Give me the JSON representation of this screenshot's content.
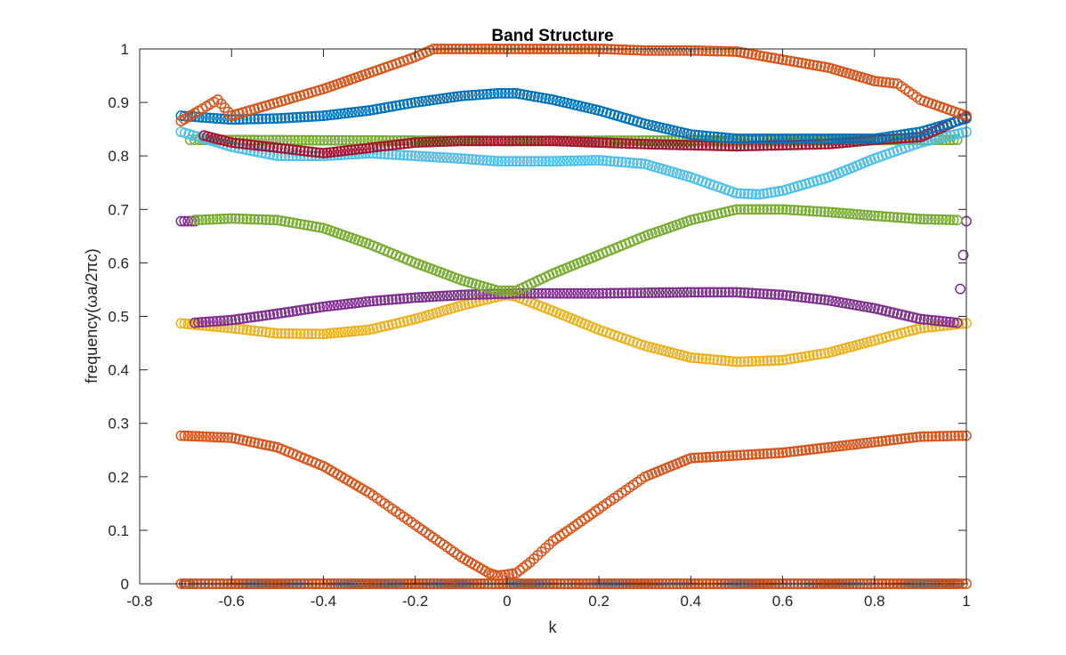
{
  "chart_data": {
    "type": "scatter",
    "title": "Band Structure",
    "xlabel": "k",
    "ylabel": "frequency(ωa/2πc)",
    "xlim": [
      -0.8,
      1
    ],
    "ylim": [
      0,
      1
    ],
    "xticks": [
      "-0.8",
      "-0.6",
      "-0.4",
      "-0.2",
      "0",
      "0.2",
      "0.4",
      "0.6",
      "0.8",
      "1"
    ],
    "yticks": [
      "0",
      "0.1",
      "0.2",
      "0.3",
      "0.4",
      "0.5",
      "0.6",
      "0.7",
      "0.8",
      "0.9",
      "1"
    ],
    "grid": false,
    "legend": "none",
    "marker": "open-circle",
    "series": [
      {
        "color": "#0072BD",
        "points": [
          [
            -0.7,
            0
          ],
          [
            -0.6,
            0
          ],
          [
            -0.5,
            0
          ],
          [
            -0.4,
            0
          ],
          [
            -0.3,
            0
          ],
          [
            -0.2,
            0
          ],
          [
            -0.16,
            0
          ],
          [
            0.22,
            0
          ],
          [
            0.3,
            0
          ],
          [
            0.4,
            0
          ],
          [
            0.5,
            0
          ],
          [
            0.6,
            0
          ],
          [
            0.7,
            0
          ],
          [
            0.8,
            0
          ],
          [
            0.9,
            0
          ],
          [
            0.98,
            0
          ]
        ]
      },
      {
        "color": "#D95319",
        "points": [
          [
            -0.71,
            0
          ],
          [
            -0.69,
            0
          ],
          [
            -0.15,
            0
          ],
          [
            -0.1,
            0
          ],
          [
            -0.05,
            0
          ],
          [
            0,
            0
          ],
          [
            0.05,
            0
          ],
          [
            0.1,
            0
          ],
          [
            0.15,
            0
          ],
          [
            0.21,
            0
          ],
          [
            1,
            0
          ]
        ]
      },
      {
        "color": "#D95319",
        "points": [
          [
            -0.71,
            0.277
          ],
          [
            -0.6,
            0.273
          ],
          [
            -0.5,
            0.255
          ],
          [
            -0.4,
            0.22
          ],
          [
            -0.3,
            0.17
          ],
          [
            -0.2,
            0.11
          ],
          [
            -0.1,
            0.05
          ],
          [
            -0.04,
            0.02
          ],
          [
            -0.02,
            0.015
          ],
          [
            0.02,
            0.02
          ],
          [
            0.05,
            0.04
          ],
          [
            0.1,
            0.08
          ],
          [
            0.2,
            0.14
          ],
          [
            0.3,
            0.2
          ],
          [
            0.4,
            0.235
          ],
          [
            0.5,
            0.24
          ],
          [
            0.6,
            0.245
          ],
          [
            0.7,
            0.255
          ],
          [
            0.8,
            0.265
          ],
          [
            0.9,
            0.275
          ],
          [
            1,
            0.277
          ]
        ]
      },
      {
        "color": "#EDB120",
        "points": [
          [
            -0.71,
            0.487
          ],
          [
            -0.6,
            0.478
          ],
          [
            -0.5,
            0.468
          ],
          [
            -0.4,
            0.467
          ],
          [
            -0.3,
            0.475
          ],
          [
            -0.2,
            0.495
          ],
          [
            -0.1,
            0.52
          ],
          [
            -0.02,
            0.537
          ],
          [
            0,
            0.54
          ],
          [
            0.02,
            0.537
          ],
          [
            0.1,
            0.51
          ],
          [
            0.2,
            0.475
          ],
          [
            0.3,
            0.445
          ],
          [
            0.4,
            0.423
          ],
          [
            0.5,
            0.415
          ],
          [
            0.6,
            0.418
          ],
          [
            0.7,
            0.432
          ],
          [
            0.8,
            0.455
          ],
          [
            0.9,
            0.478
          ],
          [
            1,
            0.487
          ]
        ]
      },
      {
        "color": "#7E2F8E",
        "points": [
          [
            -0.71,
            0.678
          ],
          [
            -0.68,
            0.678
          ]
        ]
      },
      {
        "color": "#7E2F8E",
        "points": [
          [
            -0.68,
            0.488
          ],
          [
            -0.6,
            0.493
          ],
          [
            -0.5,
            0.505
          ],
          [
            -0.4,
            0.518
          ],
          [
            -0.3,
            0.528
          ],
          [
            -0.2,
            0.535
          ],
          [
            -0.1,
            0.54
          ],
          [
            -0.02,
            0.542
          ],
          [
            0.02,
            0.543
          ],
          [
            0.1,
            0.543
          ],
          [
            0.2,
            0.543
          ],
          [
            0.3,
            0.544
          ],
          [
            0.4,
            0.545
          ],
          [
            0.5,
            0.545
          ],
          [
            0.6,
            0.54
          ],
          [
            0.7,
            0.53
          ],
          [
            0.8,
            0.515
          ],
          [
            0.9,
            0.495
          ],
          [
            0.98,
            0.488
          ],
          [
            1,
            0.678
          ]
        ]
      },
      {
        "color": "#77AC30",
        "points": [
          [
            -0.68,
            0.68
          ],
          [
            -0.6,
            0.683
          ],
          [
            -0.5,
            0.68
          ],
          [
            -0.4,
            0.665
          ],
          [
            -0.3,
            0.635
          ],
          [
            -0.2,
            0.6
          ],
          [
            -0.1,
            0.568
          ],
          [
            -0.02,
            0.548
          ],
          [
            0.02,
            0.548
          ],
          [
            0.1,
            0.58
          ],
          [
            0.2,
            0.615
          ],
          [
            0.3,
            0.65
          ],
          [
            0.4,
            0.68
          ],
          [
            0.5,
            0.7
          ],
          [
            0.6,
            0.7
          ],
          [
            0.7,
            0.695
          ],
          [
            0.8,
            0.688
          ],
          [
            0.9,
            0.682
          ],
          [
            0.98,
            0.68
          ]
        ]
      },
      {
        "color": "#77AC30",
        "points": [
          [
            -0.69,
            0.83
          ],
          [
            -0.67,
            0.83
          ],
          [
            0,
            0.828
          ],
          [
            0.98,
            0.83
          ]
        ]
      },
      {
        "color": "#4DBEEE",
        "points": [
          [
            -0.71,
            0.845
          ],
          [
            -0.65,
            0.83
          ],
          [
            -0.6,
            0.817
          ],
          [
            -0.5,
            0.8
          ],
          [
            -0.4,
            0.8
          ],
          [
            -0.3,
            0.805
          ],
          [
            -0.2,
            0.8
          ],
          [
            -0.1,
            0.795
          ],
          [
            -0.02,
            0.79
          ],
          [
            0.02,
            0.79
          ],
          [
            0.1,
            0.79
          ],
          [
            0.2,
            0.792
          ],
          [
            0.3,
            0.785
          ],
          [
            0.4,
            0.76
          ],
          [
            0.5,
            0.73
          ],
          [
            0.55,
            0.728
          ],
          [
            0.6,
            0.735
          ],
          [
            0.7,
            0.76
          ],
          [
            0.8,
            0.795
          ],
          [
            0.9,
            0.825
          ],
          [
            1,
            0.845
          ]
        ]
      },
      {
        "color": "#A2142F",
        "points": [
          [
            -0.66,
            0.838
          ],
          [
            -0.6,
            0.825
          ],
          [
            -0.5,
            0.815
          ],
          [
            -0.4,
            0.805
          ],
          [
            -0.3,
            0.815
          ],
          [
            -0.2,
            0.825
          ],
          [
            -0.1,
            0.828
          ],
          [
            -0.02,
            0.828
          ],
          [
            0.02,
            0.828
          ],
          [
            0.1,
            0.828
          ],
          [
            0.2,
            0.825
          ],
          [
            0.3,
            0.822
          ],
          [
            0.4,
            0.82
          ],
          [
            0.5,
            0.818
          ],
          [
            0.6,
            0.82
          ],
          [
            0.7,
            0.822
          ],
          [
            0.8,
            0.83
          ],
          [
            0.9,
            0.835
          ],
          [
            1,
            0.873
          ]
        ]
      },
      {
        "color": "#0072BD",
        "points": [
          [
            -0.71,
            0.875
          ],
          [
            -0.6,
            0.868
          ],
          [
            -0.5,
            0.87
          ],
          [
            -0.4,
            0.875
          ],
          [
            -0.3,
            0.885
          ],
          [
            -0.2,
            0.9
          ],
          [
            -0.1,
            0.912
          ],
          [
            -0.02,
            0.917
          ],
          [
            0.02,
            0.917
          ],
          [
            0.1,
            0.905
          ],
          [
            0.2,
            0.885
          ],
          [
            0.3,
            0.86
          ],
          [
            0.4,
            0.84
          ],
          [
            0.5,
            0.832
          ],
          [
            0.6,
            0.832
          ],
          [
            0.7,
            0.832
          ],
          [
            0.8,
            0.832
          ],
          [
            0.9,
            0.845
          ],
          [
            1,
            0.87
          ]
        ]
      },
      {
        "color": "#D95319",
        "points": [
          [
            -0.71,
            0.865
          ],
          [
            -0.68,
            0.88
          ],
          [
            -0.63,
            0.905
          ],
          [
            -0.6,
            0.875
          ],
          [
            -0.5,
            0.9
          ],
          [
            -0.4,
            0.925
          ],
          [
            -0.3,
            0.955
          ],
          [
            -0.2,
            0.985
          ],
          [
            -0.16,
            1.0
          ],
          [
            0.21,
            1.0
          ],
          [
            0.3,
            0.997
          ],
          [
            0.4,
            0.997
          ],
          [
            0.5,
            0.995
          ],
          [
            0.6,
            0.98
          ],
          [
            0.7,
            0.965
          ],
          [
            0.8,
            0.94
          ],
          [
            0.85,
            0.935
          ],
          [
            0.9,
            0.905
          ],
          [
            1,
            0.875
          ]
        ]
      }
    ]
  }
}
